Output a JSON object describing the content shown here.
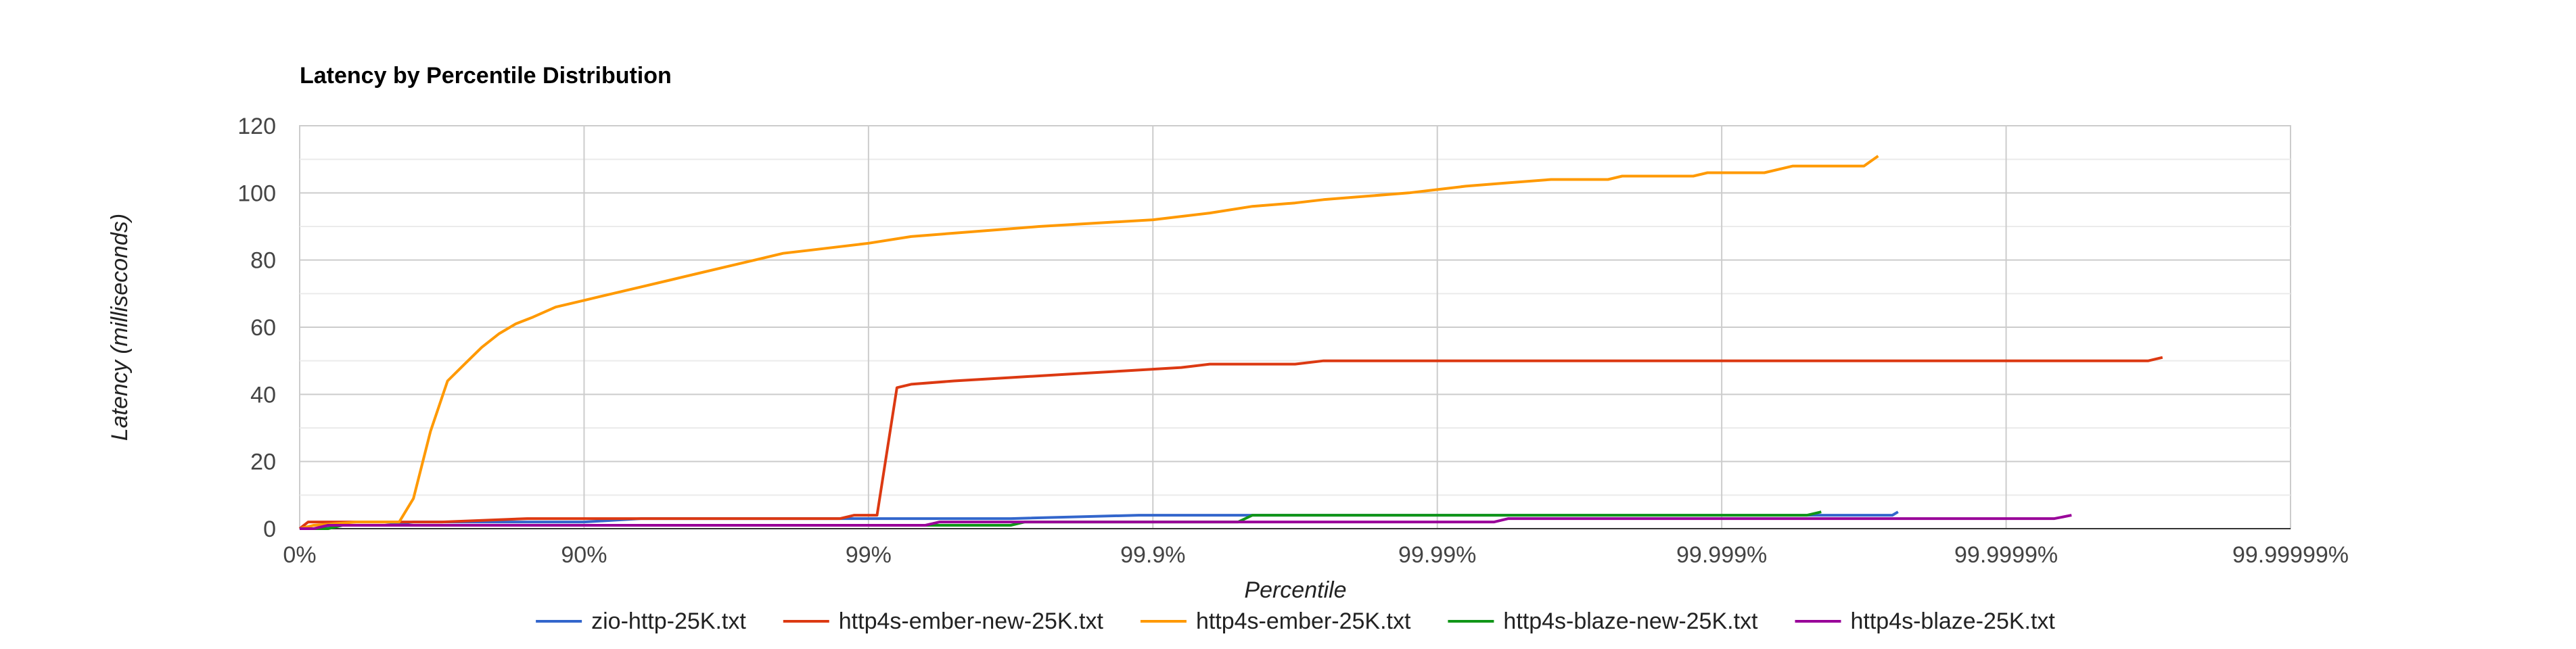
{
  "chart_data": {
    "type": "line",
    "title": "Latency by Percentile Distribution",
    "xlabel": "Percentile",
    "ylabel": "Latency (milliseconds)",
    "x_scale": "log-percentile",
    "x_ticks": [
      "0%",
      "90%",
      "99%",
      "99.9%",
      "99.99%",
      "99.999%",
      "99.9999%",
      "99.99999%"
    ],
    "y_ticks": [
      "0",
      "20",
      "40",
      "60",
      "80",
      "100",
      "120"
    ],
    "ylim": [
      0,
      120
    ],
    "grid": true,
    "legend_position": "bottom",
    "series": [
      {
        "name": "zio-http-25K.txt",
        "color": "#3366cc",
        "points": [
          [
            0,
            0
          ],
          [
            0.05,
            0
          ],
          [
            0.12,
            1
          ],
          [
            0.2,
            1
          ],
          [
            0.3,
            1
          ],
          [
            0.4,
            2
          ],
          [
            0.6,
            2
          ],
          [
            0.8,
            2
          ],
          [
            1.0,
            2
          ],
          [
            1.2,
            3
          ],
          [
            1.5,
            3
          ],
          [
            2.0,
            3
          ],
          [
            2.5,
            3
          ],
          [
            2.95,
            4
          ],
          [
            3.2,
            4
          ],
          [
            3.5,
            4
          ],
          [
            4.0,
            4
          ],
          [
            4.5,
            4
          ],
          [
            5.0,
            4
          ],
          [
            5.3,
            4
          ],
          [
            5.6,
            4
          ],
          [
            5.62,
            5
          ]
        ]
      },
      {
        "name": "http4s-ember-new-25K.txt",
        "color": "#dc3912",
        "points": [
          [
            0,
            0
          ],
          [
            0.03,
            2
          ],
          [
            0.2,
            2
          ],
          [
            0.5,
            2
          ],
          [
            0.8,
            3
          ],
          [
            1.0,
            3
          ],
          [
            1.5,
            3
          ],
          [
            1.9,
            3
          ],
          [
            1.95,
            4
          ],
          [
            2.03,
            4
          ],
          [
            2.1,
            42
          ],
          [
            2.15,
            43
          ],
          [
            2.3,
            44
          ],
          [
            2.5,
            45
          ],
          [
            2.7,
            46
          ],
          [
            2.9,
            47
          ],
          [
            3.1,
            48
          ],
          [
            3.2,
            49
          ],
          [
            3.5,
            49
          ],
          [
            3.6,
            50
          ],
          [
            4.0,
            50
          ],
          [
            5.0,
            50
          ],
          [
            6.0,
            50
          ],
          [
            6.5,
            50
          ],
          [
            6.55,
            51
          ]
        ]
      },
      {
        "name": "http4s-ember-25K.txt",
        "color": "#ff9900",
        "points": [
          [
            0,
            0
          ],
          [
            0.05,
            1
          ],
          [
            0.2,
            2
          ],
          [
            0.35,
            2
          ],
          [
            0.4,
            9
          ],
          [
            0.46,
            29
          ],
          [
            0.52,
            44
          ],
          [
            0.58,
            49
          ],
          [
            0.64,
            54
          ],
          [
            0.7,
            58
          ],
          [
            0.76,
            61
          ],
          [
            0.82,
            63
          ],
          [
            0.9,
            66
          ],
          [
            1.0,
            68
          ],
          [
            1.1,
            70
          ],
          [
            1.2,
            72
          ],
          [
            1.3,
            74
          ],
          [
            1.4,
            76
          ],
          [
            1.5,
            78
          ],
          [
            1.6,
            80
          ],
          [
            1.7,
            82
          ],
          [
            1.8,
            83
          ],
          [
            1.9,
            84
          ],
          [
            2.0,
            85
          ],
          [
            2.15,
            87
          ],
          [
            2.3,
            88
          ],
          [
            2.45,
            89
          ],
          [
            2.6,
            90
          ],
          [
            2.8,
            91
          ],
          [
            3.0,
            92
          ],
          [
            3.1,
            93
          ],
          [
            3.2,
            94
          ],
          [
            3.35,
            96
          ],
          [
            3.5,
            97
          ],
          [
            3.6,
            98
          ],
          [
            3.75,
            99
          ],
          [
            3.9,
            100
          ],
          [
            4.0,
            101
          ],
          [
            4.1,
            102
          ],
          [
            4.25,
            103
          ],
          [
            4.4,
            104
          ],
          [
            4.6,
            104
          ],
          [
            4.65,
            105
          ],
          [
            4.9,
            105
          ],
          [
            4.95,
            106
          ],
          [
            5.15,
            106
          ],
          [
            5.25,
            108
          ],
          [
            5.5,
            108
          ],
          [
            5.55,
            111
          ]
        ]
      },
      {
        "name": "http4s-blaze-new-25K.txt",
        "color": "#109618",
        "points": [
          [
            0,
            0
          ],
          [
            0.1,
            0
          ],
          [
            0.15,
            1
          ],
          [
            0.3,
            1
          ],
          [
            0.5,
            1
          ],
          [
            1.0,
            1
          ],
          [
            1.5,
            1
          ],
          [
            2.0,
            1
          ],
          [
            2.5,
            1
          ],
          [
            2.55,
            2
          ],
          [
            3.0,
            2
          ],
          [
            3.3,
            2
          ],
          [
            3.35,
            4
          ],
          [
            4.0,
            4
          ],
          [
            4.5,
            4
          ],
          [
            5.0,
            4
          ],
          [
            5.3,
            4
          ],
          [
            5.35,
            5
          ]
        ]
      },
      {
        "name": "http4s-blaze-25K.txt",
        "color": "#990099",
        "points": [
          [
            0,
            0
          ],
          [
            0.05,
            0
          ],
          [
            0.1,
            1
          ],
          [
            0.2,
            1
          ],
          [
            0.25,
            1
          ],
          [
            0.3,
            1
          ],
          [
            0.5,
            1
          ],
          [
            1.0,
            1
          ],
          [
            1.5,
            1
          ],
          [
            2.0,
            1
          ],
          [
            2.2,
            1
          ],
          [
            2.25,
            2
          ],
          [
            3.0,
            2
          ],
          [
            4.0,
            2
          ],
          [
            4.2,
            2
          ],
          [
            4.25,
            3
          ],
          [
            5.0,
            3
          ],
          [
            5.5,
            3
          ],
          [
            6.0,
            3
          ],
          [
            6.17,
            3
          ],
          [
            6.23,
            4
          ]
        ]
      }
    ]
  }
}
